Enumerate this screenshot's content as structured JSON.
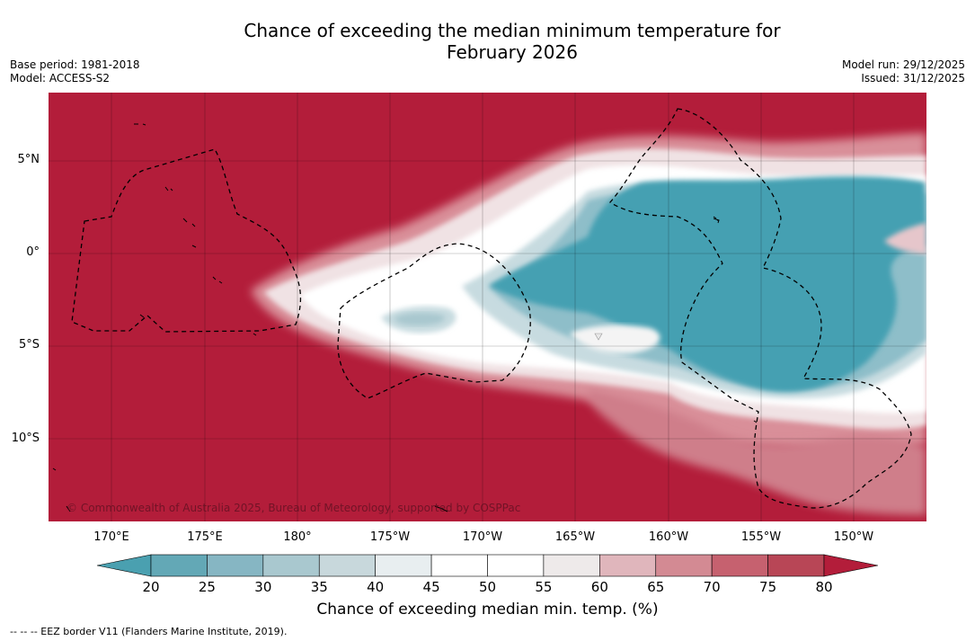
{
  "title_line1": "Chance of exceeding the median minimum temperature for",
  "title_line2": "February 2026",
  "base_period": "Base period: 1981-2018",
  "model": "Model: ACCESS-S2",
  "model_run": "Model run: 29/12/2025",
  "issued": "Issued: 31/12/2025",
  "lat_labels": [
    "5°N",
    "0°",
    "5°S",
    "10°S"
  ],
  "lon_labels": [
    "170°E",
    "175°E",
    "180°",
    "175°W",
    "170°W",
    "165°W",
    "160°W",
    "155°W",
    "150°W"
  ],
  "copyright": "© Commonwealth of Australia 2025, Bureau of Meteorology, supported by COSPPac",
  "colorbar": {
    "ticks": [
      "20",
      "25",
      "30",
      "35",
      "40",
      "45",
      "50",
      "55",
      "60",
      "65",
      "70",
      "75",
      "80"
    ],
    "colors": [
      "#63a8b6",
      "#86b6c3",
      "#a9c8cf",
      "#c8d8dc",
      "#e8eef0",
      "#ffffff",
      "#ffffff",
      "#eeeaea",
      "#e0b6bc",
      "#d38a93",
      "#c6616f",
      "#b84656"
    ],
    "low_color": "#4aa0b0",
    "high_color": "#b31d3a",
    "label": "Chance of exceeding median min. temp. (%)"
  },
  "footer": "--  --  -- EEZ border V11 (Flanders Marine Institute, 2019)."
}
